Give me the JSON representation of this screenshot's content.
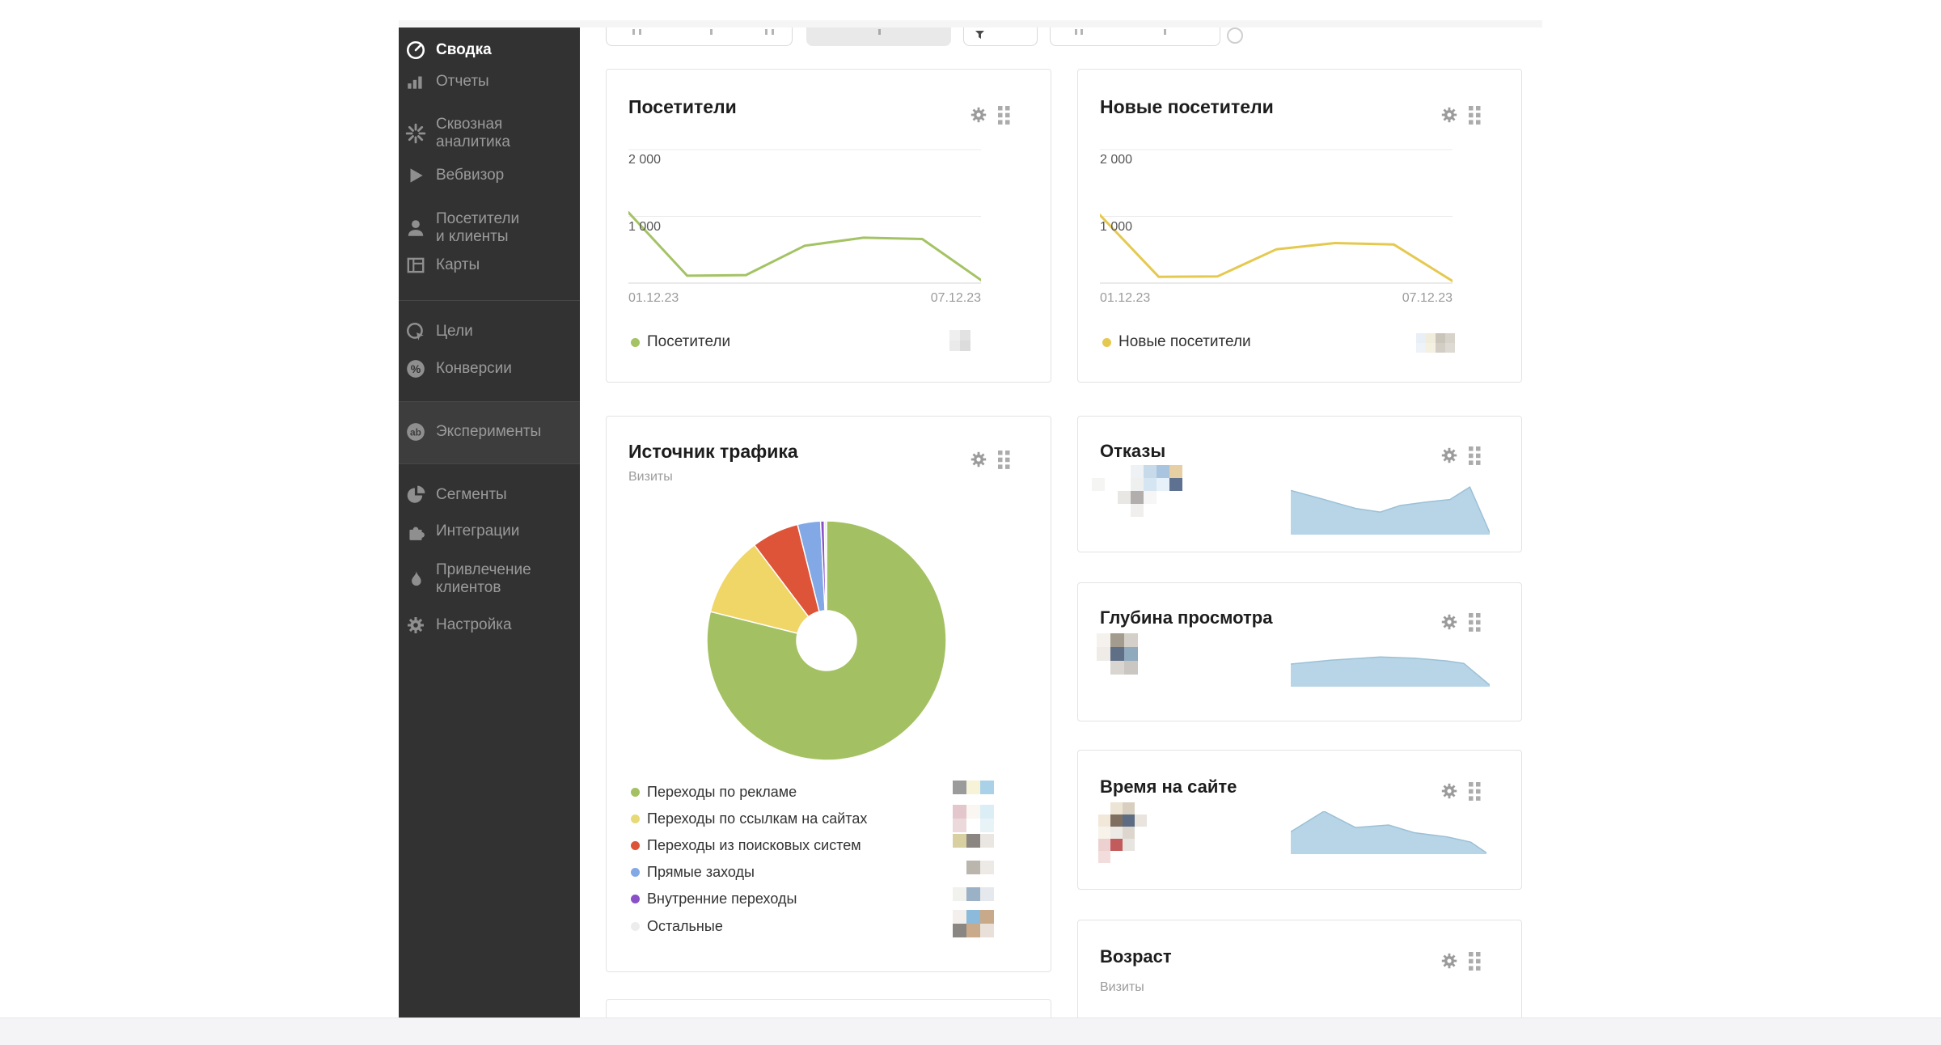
{
  "sidebar": {
    "items": [
      {
        "lines": [
          "Сводка"
        ],
        "active": true
      },
      {
        "lines": [
          "Отчеты"
        ]
      },
      {
        "lines": [
          "Сквозная",
          "аналитика"
        ]
      },
      {
        "lines": [
          "Вебвизор"
        ]
      },
      {
        "lines": [
          "Посетители",
          "и клиенты"
        ]
      },
      {
        "lines": [
          "Карты"
        ]
      },
      {
        "lines": [
          "Цели"
        ]
      },
      {
        "lines": [
          "Конверсии"
        ]
      },
      {
        "lines": [
          "Эксперименты"
        ]
      },
      {
        "lines": [
          "Сегменты"
        ]
      },
      {
        "lines": [
          "Интеграции"
        ]
      },
      {
        "lines": [
          "Привлечение",
          "клиентов"
        ]
      },
      {
        "lines": [
          "Настройка"
        ]
      }
    ]
  },
  "cards": {
    "visitors": {
      "title": "Посетители",
      "legend": "Посетители",
      "y_ticks": [
        "2 000",
        "1 000"
      ],
      "date_start": "01.12.23",
      "date_end": "07.12.23"
    },
    "new_visitors": {
      "title": "Новые посетители",
      "legend": "Новые посетители",
      "y_ticks": [
        "2 000",
        "1 000"
      ],
      "date_start": "01.12.23",
      "date_end": "07.12.23"
    },
    "traffic_source": {
      "title": "Источник трафика",
      "subtitle": "Визиты",
      "legend": [
        "Переходы по рекламе",
        "Переходы по ссылкам на сайтах",
        "Переходы из поисковых систем",
        "Прямые заходы",
        "Внутренние переходы",
        "Остальные"
      ]
    },
    "bounces": {
      "title": "Отказы"
    },
    "depth": {
      "title": "Глубина просмотра"
    },
    "time_on_site": {
      "title": "Время на сайте"
    },
    "age": {
      "title": "Возраст",
      "subtitle": "Визиты"
    }
  },
  "chart_data": [
    {
      "type": "line",
      "title": "Посетители",
      "x_labels": [
        "01.12.23",
        "07.12.23"
      ],
      "y_ticks": [
        2000,
        1000
      ],
      "ylim": [
        0,
        2200
      ],
      "grid": true,
      "legend_position": "bottom",
      "series": [
        {
          "name": "Посетители",
          "color": "#a4c364",
          "values": [
            1060,
            110,
            120,
            560,
            680,
            660,
            45
          ]
        }
      ]
    },
    {
      "type": "line",
      "title": "Новые посетители",
      "x_labels": [
        "01.12.23",
        "07.12.23"
      ],
      "y_ticks": [
        2000,
        1000
      ],
      "ylim": [
        0,
        2200
      ],
      "grid": true,
      "legend_position": "bottom",
      "series": [
        {
          "name": "Новые посетители",
          "color": "#e5c94f",
          "values": [
            1020,
            95,
            100,
            505,
            600,
            580,
            30
          ]
        }
      ]
    },
    {
      "type": "pie",
      "title": "Источник трафика",
      "subtitle": "Визиты",
      "donut": true,
      "labels": [
        "Переходы по рекламе",
        "Переходы по ссылкам на сайтах",
        "Переходы из поисковых систем",
        "Прямые заходы",
        "Внутренние переходы",
        "Остальные"
      ],
      "values": [
        78.9,
        10.8,
        6.4,
        3.1,
        0.5,
        0.3
      ],
      "colors": [
        "#a3c162",
        "#f0d567",
        "#dd5438",
        "#82a8e5",
        "#8a50c8",
        "#ececec"
      ]
    },
    {
      "type": "area",
      "title": "Отказы",
      "color": "#b7d5e7",
      "stroke": "#9cc0d6",
      "points": [
        [
          0,
          0.88
        ],
        [
          0.15,
          0.72
        ],
        [
          0.33,
          0.52
        ],
        [
          0.45,
          0.45
        ],
        [
          0.55,
          0.58
        ],
        [
          0.68,
          0.65
        ],
        [
          0.8,
          0.7
        ],
        [
          0.9,
          0.95
        ],
        [
          1,
          0.04
        ]
      ]
    },
    {
      "type": "area",
      "title": "Глубина просмотра",
      "color": "#b7d5e7",
      "stroke": "#9cc0d6",
      "points": [
        [
          0,
          0.7
        ],
        [
          0.2,
          0.82
        ],
        [
          0.45,
          0.92
        ],
        [
          0.62,
          0.88
        ],
        [
          0.78,
          0.8
        ],
        [
          0.87,
          0.72
        ],
        [
          1,
          0.05
        ]
      ]
    },
    {
      "type": "area",
      "title": "Время на сайте",
      "color": "#b7d5e7",
      "stroke": "#9cc0d6",
      "points": [
        [
          0,
          0.52
        ],
        [
          0.17,
          1
        ],
        [
          0.33,
          0.62
        ],
        [
          0.5,
          0.68
        ],
        [
          0.63,
          0.5
        ],
        [
          0.8,
          0.4
        ],
        [
          0.92,
          0.28
        ],
        [
          1,
          0.03
        ]
      ]
    }
  ],
  "mosaics": {
    "visitors": {
      "cell": 13,
      "grid": [
        [
          "#efefef",
          "#e2e2e2"
        ],
        [
          "#eaeaea",
          "#dcdcdc"
        ]
      ]
    },
    "new_visitors": {
      "cell": 12,
      "grid": [
        [
          "#e9eff7",
          "#f1eddd",
          "#cac5bb",
          "#d7d3cb"
        ],
        [
          "#eef3f9",
          "#f4f0e2",
          "#d2cec6",
          "#dddad3"
        ]
      ]
    },
    "traffic_0": {
      "cell": 17,
      "grid": [
        [
          "#9b9b9b",
          "#f7f3d8",
          "#a9d2e8"
        ]
      ]
    },
    "traffic_1": {
      "cell": 17,
      "grid": [
        [
          "#e4c7cc",
          "#faf6f2",
          "#dbeef6"
        ],
        [
          "#ecd9dc",
          "",
          "#e8f3f8"
        ]
      ]
    },
    "traffic_2": {
      "cell": 17,
      "grid": [
        [
          "#d9d0a2",
          "#8b8681",
          "#eae6e2"
        ]
      ]
    },
    "traffic_3": {
      "cell": 17,
      "grid": [
        [
          "",
          "#bab6ae",
          "#edeae6"
        ]
      ]
    },
    "traffic_4": {
      "cell": 17,
      "grid": [
        [
          "#f1f1ed",
          "#9bb1c5",
          "#e5e9ed"
        ]
      ]
    },
    "traffic_5": {
      "cell": 17,
      "grid": [
        [
          "#f2efec",
          "#8cbada",
          "#c8aa8a"
        ],
        [
          "#8a8682",
          "#c9ab8b",
          "#e9e1d9"
        ]
      ]
    },
    "bounces": {
      "cell": 16,
      "grid": [
        [
          "",
          "",
          "",
          "#eef2f5",
          "#c6daea",
          "#a9c4df",
          "#e5cfa3"
        ],
        [
          "#f5f5f3",
          "",
          "",
          "#eef0f0",
          "#d5e5f2",
          "#e6f1f9",
          "#5e7191"
        ],
        [
          "",
          "",
          "#e9e7e4",
          "#b3aeae",
          "#f6f6f6",
          "",
          ""
        ],
        [
          "",
          "",
          "",
          "#f1efed",
          "",
          "",
          ""
        ]
      ]
    },
    "depth": {
      "cell": 17,
      "grid": [
        [
          "#f5f2ee",
          "#a39c8e",
          "#d4d0c9"
        ],
        [
          "#efebe6",
          "#5f6f85",
          "#8fa9bd"
        ],
        [
          "",
          "#d9d6d1",
          "#cac7c2"
        ]
      ]
    },
    "time": {
      "cell": 15,
      "grid": [
        [
          "",
          "#ece4d4",
          "#d9cfc0",
          ""
        ],
        [
          "#f2e8da",
          "#7e6f60",
          "#5d6c83",
          "#e9e4de"
        ],
        [
          "#f7f2ea",
          "#eceae6",
          "#dcd6ce",
          ""
        ],
        [
          "#edd1d1",
          "#c25b5b",
          "#e8e4e0",
          ""
        ],
        [
          "#f2dcdc",
          "",
          "",
          ""
        ]
      ]
    }
  }
}
